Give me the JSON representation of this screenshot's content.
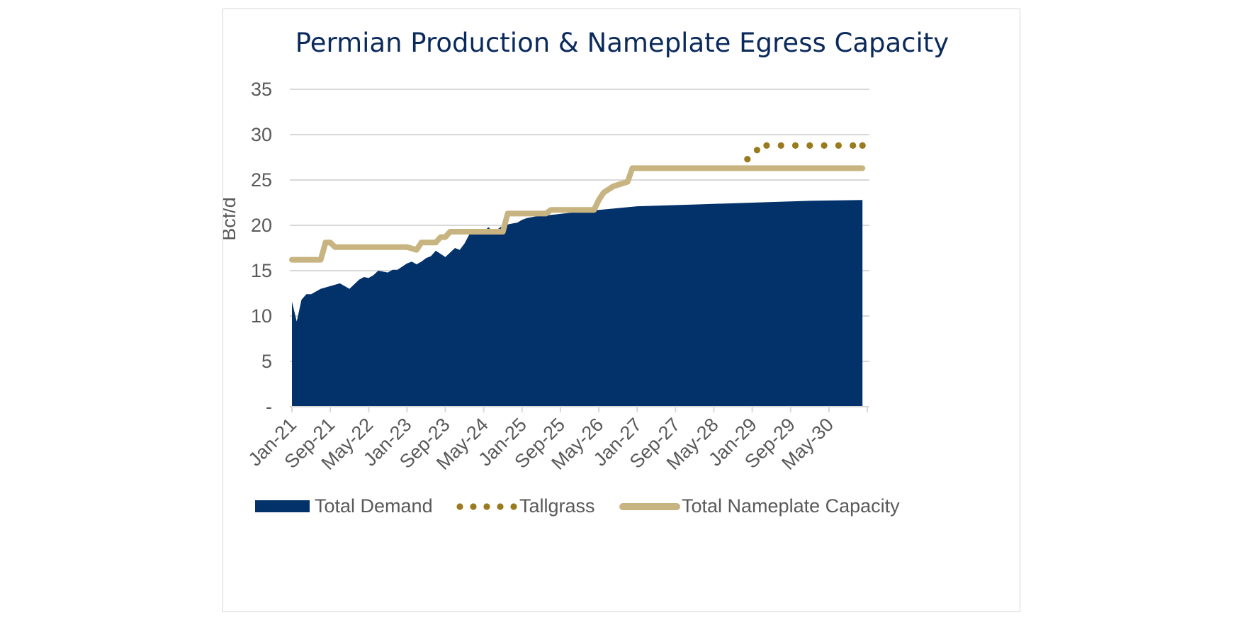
{
  "chart_data": {
    "type": "area",
    "title": "Permian Production & Nameplate Egress Capacity",
    "ylabel": "Bcf/d",
    "xlabel": "",
    "ylim": [
      0,
      35
    ],
    "yticks": [
      0,
      5,
      10,
      15,
      20,
      25,
      30,
      35
    ],
    "ytick_labels": [
      "-",
      "5",
      "10",
      "15",
      "20",
      "25",
      "30",
      "35"
    ],
    "x_start": "Jan-21",
    "x_end": "Dec-30",
    "xtick_labels": [
      "Jan-21",
      "Sep-21",
      "May-22",
      "Jan-23",
      "Sep-23",
      "May-24",
      "Jan-25",
      "Sep-25",
      "May-26",
      "Jan-27",
      "Sep-27",
      "May-28",
      "Jan-29",
      "Sep-29",
      "May-30"
    ],
    "grid": true,
    "legend_position": "bottom",
    "colors": {
      "Total Demand": "#03326a",
      "Tallgrass": "#9a7a1e",
      "Total Nameplate Capacity": "#c8b480"
    },
    "series": [
      {
        "name": "Total Demand",
        "kind": "area",
        "x": [
          "Jan-21",
          "Feb-21",
          "Mar-21",
          "Apr-21",
          "May-21",
          "Jul-21",
          "Sep-21",
          "Nov-21",
          "Jan-22",
          "Mar-22",
          "Apr-22",
          "May-22",
          "Jun-22",
          "Jul-22",
          "Sep-22",
          "Oct-22",
          "Nov-22",
          "Jan-23",
          "Feb-23",
          "Mar-23",
          "Apr-23",
          "May-23",
          "Jun-23",
          "Jul-23",
          "Sep-23",
          "Nov-23",
          "Dec-23",
          "Jan-24",
          "Feb-24",
          "Mar-24",
          "May-24",
          "Jun-24",
          "Jul-24",
          "Sep-24",
          "Oct-24",
          "Nov-24",
          "Dec-24",
          "Jan-25",
          "Feb-25",
          "Apr-25",
          "Aug-25",
          "Jan-26",
          "Jul-26",
          "Jan-27",
          "Jan-28",
          "Jan-29",
          "Jan-30",
          "Dec-30"
        ],
        "values": [
          11.6,
          9.4,
          11.8,
          12.4,
          12.4,
          13.0,
          13.3,
          13.6,
          13.0,
          14.0,
          14.3,
          14.2,
          14.5,
          15.0,
          14.8,
          15.1,
          15.1,
          15.8,
          16.0,
          15.7,
          16.0,
          16.4,
          16.6,
          17.2,
          16.5,
          17.5,
          17.3,
          18.0,
          19.0,
          19.2,
          19.3,
          19.8,
          19.2,
          20.0,
          20.1,
          20.2,
          20.3,
          20.6,
          20.8,
          21.0,
          21.2,
          21.5,
          21.8,
          22.1,
          22.3,
          22.5,
          22.7,
          22.8
        ]
      },
      {
        "name": "Tallgrass",
        "kind": "dotted-line",
        "x": [
          "Dec-28",
          "Feb-29",
          "Apr-29",
          "Jul-29",
          "Oct-29",
          "Jan-30",
          "Apr-30",
          "Jul-30",
          "Oct-30",
          "Dec-30"
        ],
        "values": [
          27.3,
          28.3,
          28.8,
          28.8,
          28.8,
          28.8,
          28.8,
          28.8,
          28.8,
          28.8
        ]
      },
      {
        "name": "Total Nameplate Capacity",
        "kind": "line",
        "x": [
          "Jan-21",
          "Jul-21",
          "Aug-21",
          "Sep-21",
          "Oct-21",
          "Nov-21",
          "Jan-23",
          "Mar-23",
          "Apr-23",
          "Jul-23",
          "Aug-23",
          "Sep-23",
          "Oct-23",
          "Nov-23",
          "Apr-24",
          "Sep-24",
          "Oct-24",
          "Jun-25",
          "Jul-25",
          "Sep-25",
          "Dec-25",
          "Apr-26",
          "May-26",
          "Jun-26",
          "Aug-26",
          "Nov-26",
          "Dec-26",
          "Jan-27",
          "Dec-30"
        ],
        "values": [
          16.2,
          16.2,
          18.1,
          18.1,
          17.6,
          17.6,
          17.6,
          17.3,
          18.1,
          18.1,
          18.7,
          18.7,
          19.3,
          19.3,
          19.3,
          19.3,
          21.3,
          21.3,
          21.7,
          21.7,
          21.7,
          21.7,
          22.8,
          23.6,
          24.3,
          24.8,
          26.3,
          26.3,
          26.3
        ]
      }
    ]
  }
}
